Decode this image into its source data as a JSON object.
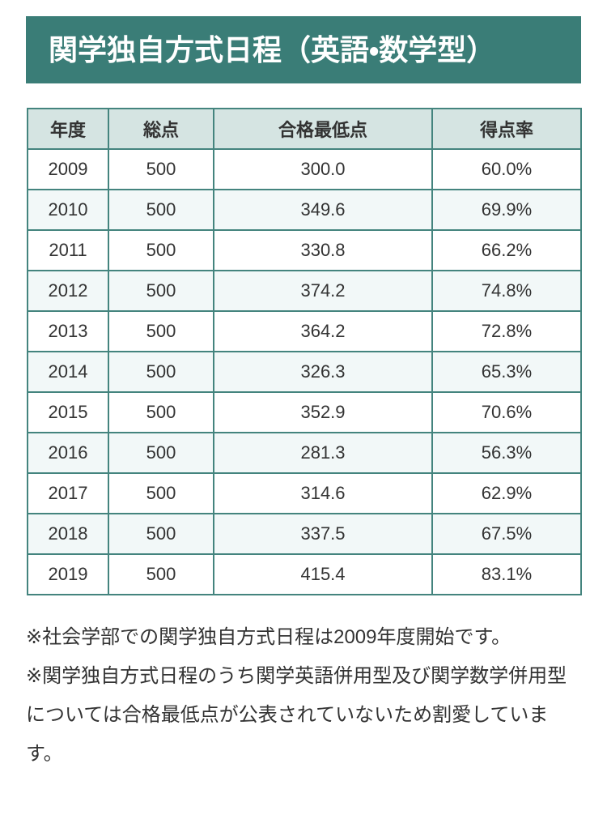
{
  "banner": {
    "title": "関学独自方式日程（英語・数学型）"
  },
  "table": {
    "headers": [
      "年度",
      "総点",
      "合格最低点",
      "得点率"
    ],
    "rows": [
      [
        "2009",
        "500",
        "300.0",
        "60.0%"
      ],
      [
        "2010",
        "500",
        "349.6",
        "69.9%"
      ],
      [
        "2011",
        "500",
        "330.8",
        "66.2%"
      ],
      [
        "2012",
        "500",
        "374.2",
        "74.8%"
      ],
      [
        "2013",
        "500",
        "364.2",
        "72.8%"
      ],
      [
        "2014",
        "500",
        "326.3",
        "65.3%"
      ],
      [
        "2015",
        "500",
        "352.9",
        "70.6%"
      ],
      [
        "2016",
        "500",
        "281.3",
        "56.3%"
      ],
      [
        "2017",
        "500",
        "314.6",
        "62.9%"
      ],
      [
        "2018",
        "500",
        "337.5",
        "67.5%"
      ],
      [
        "2019",
        "500",
        "415.4",
        "83.1%"
      ]
    ]
  },
  "notes": [
    "※社会学部での関学独自方式日程は2009年度開始です。",
    "※関学独自方式日程のうち関学英語併用型及び関学数学併用型については合格最低点が公表されていないため割愛しています。"
  ],
  "colors": {
    "banner_bg": "#3a7d77",
    "banner_text": "#ffffff",
    "header_bg": "#d5e4e2",
    "border": "#44847e",
    "row_even_bg": "#f2f8f8",
    "row_odd_bg": "#ffffff",
    "text": "#333333"
  }
}
